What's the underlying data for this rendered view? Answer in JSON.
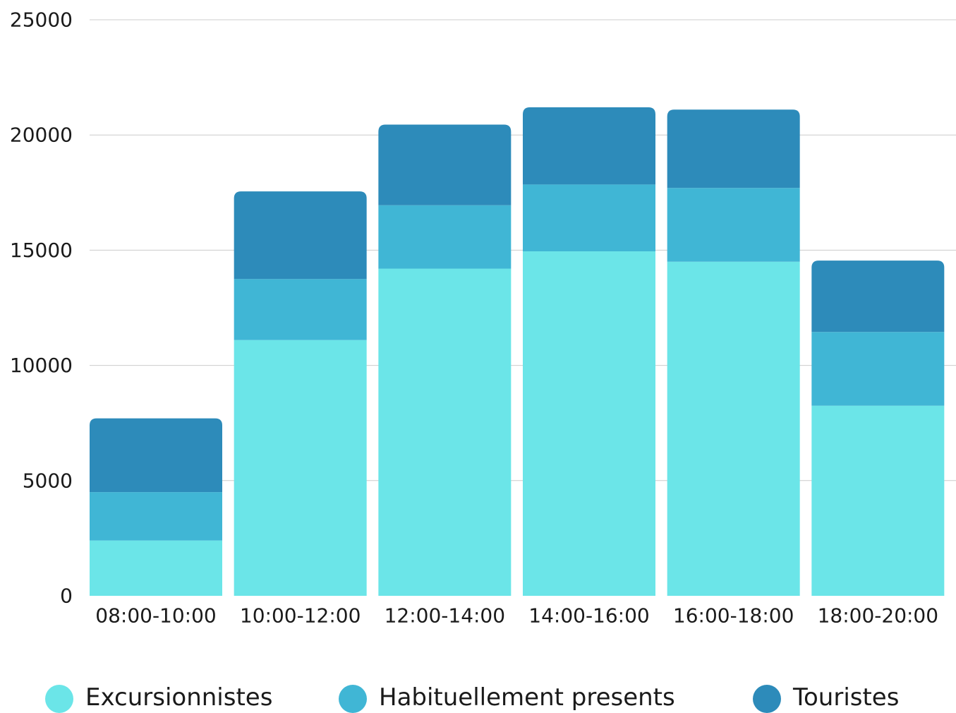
{
  "chart_data": {
    "type": "bar",
    "stacked": true,
    "categories": [
      "08:00-10:00",
      "10:00-12:00",
      "12:00-14:00",
      "14:00-16:00",
      "16:00-18:00",
      "18:00-20:00"
    ],
    "series": [
      {
        "name": "Excursionnistes",
        "color": "#6be5e8",
        "values": [
          2400,
          11100,
          14200,
          14950,
          14500,
          8250
        ]
      },
      {
        "name": "Habituellement presents",
        "color": "#40b6d5",
        "values": [
          2100,
          2650,
          2750,
          2900,
          3200,
          3200
        ]
      },
      {
        "name": "Touristes",
        "color": "#2d8bba",
        "values": [
          3200,
          3800,
          3500,
          3350,
          3400,
          3100
        ]
      }
    ],
    "ylim": [
      0,
      25000
    ],
    "yticks": [
      "0",
      "5000",
      "10000",
      "15000",
      "20000",
      "25000"
    ],
    "grid": true,
    "legend_position": "bottom",
    "title": "",
    "xlabel": "",
    "ylabel": ""
  }
}
